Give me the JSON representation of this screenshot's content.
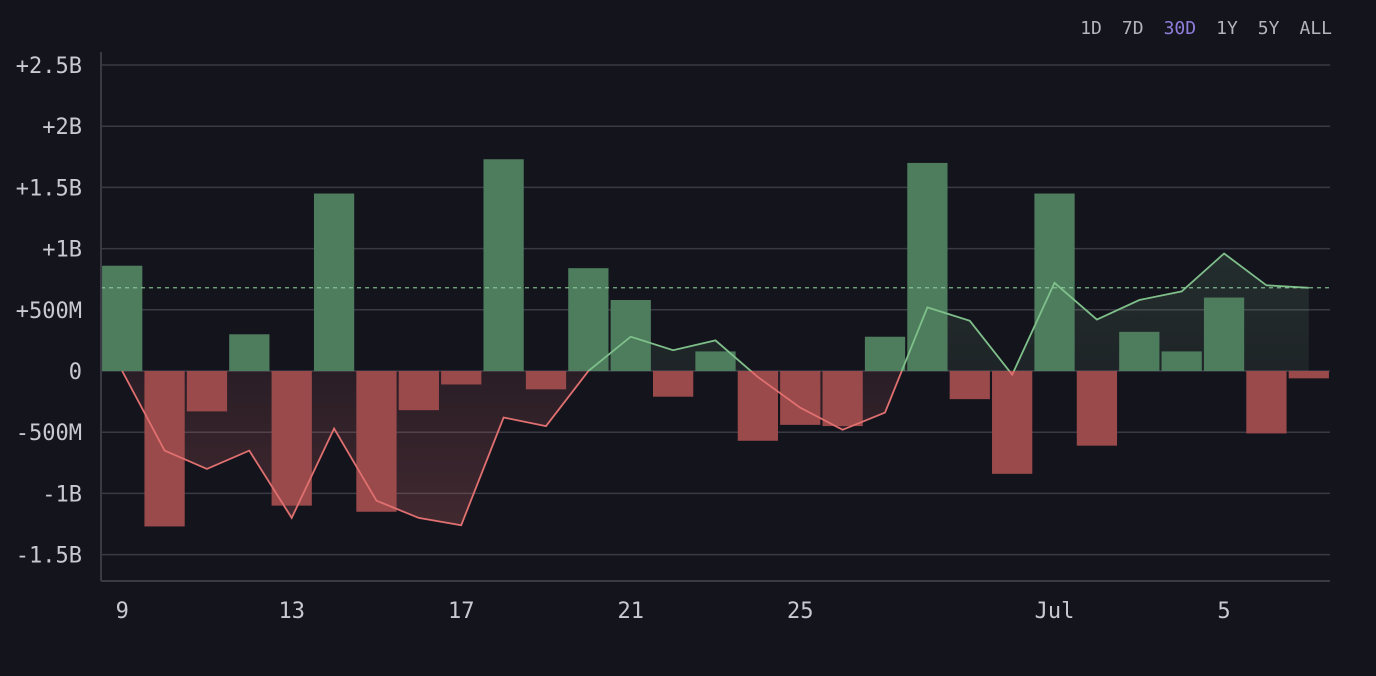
{
  "range_tabs": [
    {
      "label": "1D",
      "active": false
    },
    {
      "label": "7D",
      "active": false
    },
    {
      "label": "30D",
      "active": true
    },
    {
      "label": "1Y",
      "active": false
    },
    {
      "label": "5Y",
      "active": false
    },
    {
      "label": "ALL",
      "active": false
    }
  ],
  "colors": {
    "positive": "#4e7d5e",
    "negative": "#9a4a4b",
    "line_positive": "#7fbf8a",
    "line_negative": "#e07070",
    "grid": "#3a3a45",
    "avg_line": "#8fcf9f"
  },
  "chart_data": {
    "type": "bar",
    "ylim": [
      -1750000000,
      2600000000
    ],
    "y_ticks": [
      {
        "value": 2500000000,
        "label": "+2.5B"
      },
      {
        "value": 2000000000,
        "label": "+2B"
      },
      {
        "value": 1500000000,
        "label": "+1.5B"
      },
      {
        "value": 1000000000,
        "label": "+1B"
      },
      {
        "value": 500000000,
        "label": "+500M"
      },
      {
        "value": 0,
        "label": "0"
      },
      {
        "value": -500000000,
        "label": "-500M"
      },
      {
        "value": -1000000000,
        "label": "-1B"
      },
      {
        "value": -1500000000,
        "label": "-1.5B"
      }
    ],
    "x_ticks": [
      {
        "index": 0,
        "label": "9"
      },
      {
        "index": 4,
        "label": "13"
      },
      {
        "index": 8,
        "label": "17"
      },
      {
        "index": 12,
        "label": "21"
      },
      {
        "index": 16,
        "label": "25"
      },
      {
        "index": 22,
        "label": "Jul"
      },
      {
        "index": 26,
        "label": "5"
      }
    ],
    "bar_values": [
      860000000,
      -1270000000,
      -330000000,
      300000000,
      -1100000000,
      1450000000,
      -1150000000,
      -320000000,
      -110000000,
      1730000000,
      -150000000,
      840000000,
      580000000,
      -210000000,
      160000000,
      -570000000,
      -440000000,
      -450000000,
      280000000,
      1700000000,
      -230000000,
      -840000000,
      1450000000,
      -610000000,
      320000000,
      160000000,
      600000000,
      -510000000,
      -60000000
    ],
    "line_values": [
      0,
      -650000000,
      -800000000,
      -650000000,
      -1200000000,
      -470000000,
      -1060000000,
      -1200000000,
      -1260000000,
      -380000000,
      -450000000,
      0,
      280000000,
      170000000,
      250000000,
      -50000000,
      -300000000,
      -480000000,
      -340000000,
      520000000,
      410000000,
      -30000000,
      720000000,
      420000000,
      580000000,
      650000000,
      960000000,
      700000000,
      680000000
    ],
    "average": 680000000,
    "grid": true
  }
}
